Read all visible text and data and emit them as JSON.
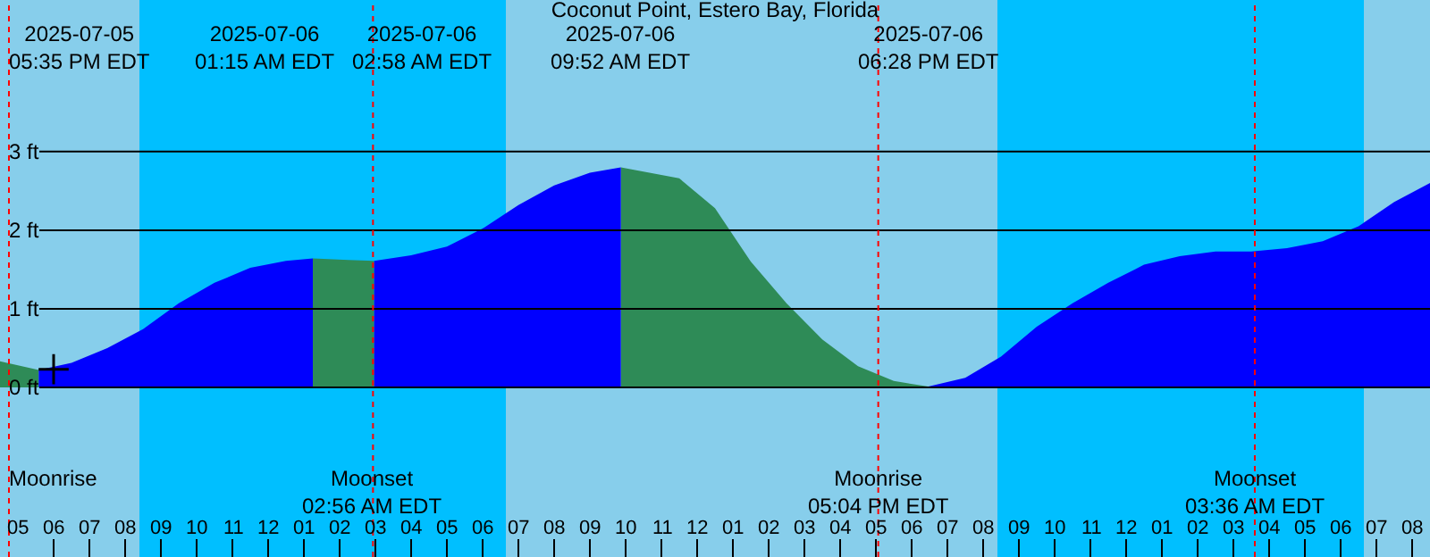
{
  "chart_data": {
    "type": "area",
    "title": "Coconut Point, Estero Bay, Florida",
    "xlim": [
      "2025-07-05T16:30",
      "2025-07-07T08:30"
    ],
    "ylim": [
      -2.16,
      4.93
    ],
    "yticks": [
      {
        "value": 0,
        "label": "0 ft"
      },
      {
        "value": 1,
        "label": "1 ft"
      },
      {
        "value": 2,
        "label": "2 ft"
      },
      {
        "value": 3,
        "label": "3 ft"
      }
    ],
    "xticks": [
      {
        "value": "2025-07-05T17:00",
        "label": "05"
      },
      {
        "value": "2025-07-05T18:00",
        "label": "06"
      },
      {
        "value": "2025-07-05T19:00",
        "label": "07"
      },
      {
        "value": "2025-07-05T20:00",
        "label": "08"
      },
      {
        "value": "2025-07-05T21:00",
        "label": "09"
      },
      {
        "value": "2025-07-05T22:00",
        "label": "10"
      },
      {
        "value": "2025-07-05T23:00",
        "label": "11"
      },
      {
        "value": "2025-07-06T00:00",
        "label": "12"
      },
      {
        "value": "2025-07-06T01:00",
        "label": "01"
      },
      {
        "value": "2025-07-06T02:00",
        "label": "02"
      },
      {
        "value": "2025-07-06T03:00",
        "label": "03"
      },
      {
        "value": "2025-07-06T04:00",
        "label": "04"
      },
      {
        "value": "2025-07-06T05:00",
        "label": "05"
      },
      {
        "value": "2025-07-06T06:00",
        "label": "06"
      },
      {
        "value": "2025-07-06T07:00",
        "label": "07"
      },
      {
        "value": "2025-07-06T08:00",
        "label": "08"
      },
      {
        "value": "2025-07-06T09:00",
        "label": "09"
      },
      {
        "value": "2025-07-06T10:00",
        "label": "10"
      },
      {
        "value": "2025-07-06T11:00",
        "label": "11"
      },
      {
        "value": "2025-07-06T12:00",
        "label": "12"
      },
      {
        "value": "2025-07-06T13:00",
        "label": "01"
      },
      {
        "value": "2025-07-06T14:00",
        "label": "02"
      },
      {
        "value": "2025-07-06T15:00",
        "label": "03"
      },
      {
        "value": "2025-07-06T16:00",
        "label": "04"
      },
      {
        "value": "2025-07-06T17:00",
        "label": "05"
      },
      {
        "value": "2025-07-06T18:00",
        "label": "06"
      },
      {
        "value": "2025-07-06T19:00",
        "label": "07"
      },
      {
        "value": "2025-07-06T20:00",
        "label": "08"
      },
      {
        "value": "2025-07-06T21:00",
        "label": "09"
      },
      {
        "value": "2025-07-06T22:00",
        "label": "10"
      },
      {
        "value": "2025-07-06T23:00",
        "label": "11"
      },
      {
        "value": "2025-07-07T00:00",
        "label": "12"
      },
      {
        "value": "2025-07-07T01:00",
        "label": "01"
      },
      {
        "value": "2025-07-07T02:00",
        "label": "02"
      },
      {
        "value": "2025-07-07T03:00",
        "label": "03"
      },
      {
        "value": "2025-07-07T04:00",
        "label": "04"
      },
      {
        "value": "2025-07-07T05:00",
        "label": "05"
      },
      {
        "value": "2025-07-07T06:00",
        "label": "06"
      },
      {
        "value": "2025-07-07T07:00",
        "label": "07"
      },
      {
        "value": "2025-07-07T08:00",
        "label": "08"
      }
    ],
    "grid": "y",
    "series": [
      {
        "color": "#2e8b57",
        "x": [
          "2025-07-05T16:30",
          "2025-07-05T17:35",
          null,
          "2025-07-06T01:15",
          "2025-07-06T02:15",
          "2025-07-06T02:58",
          null,
          "2025-07-06T09:52",
          "2025-07-06T11:30",
          "2025-07-06T12:30",
          "2025-07-06T13:30",
          "2025-07-06T14:30",
          "2025-07-06T15:30",
          "2025-07-06T16:30",
          "2025-07-06T17:30",
          "2025-07-06T18:28"
        ],
        "values": [
          0.33,
          0.22,
          null,
          1.64,
          1.62,
          1.61,
          null,
          2.8,
          2.66,
          2.28,
          1.6,
          1.07,
          0.61,
          0.27,
          0.08,
          0.01
        ]
      },
      {
        "color": "#0000ff",
        "x": [
          "2025-07-05T17:35",
          "2025-07-05T18:30",
          "2025-07-05T19:30",
          "2025-07-05T20:30",
          "2025-07-05T21:30",
          "2025-07-05T22:30",
          "2025-07-05T23:30",
          "2025-07-06T00:30",
          "2025-07-06T01:15",
          null,
          "2025-07-06T02:58",
          "2025-07-06T04:00",
          "2025-07-06T05:00",
          "2025-07-06T06:00",
          "2025-07-06T07:00",
          "2025-07-06T08:00",
          "2025-07-06T09:00",
          "2025-07-06T09:52",
          null,
          "2025-07-06T18:28",
          "2025-07-06T19:30",
          "2025-07-06T20:30",
          "2025-07-06T21:30",
          "2025-07-06T22:30",
          "2025-07-06T23:30",
          "2025-07-07T00:30",
          "2025-07-07T01:30",
          "2025-07-07T02:30",
          "2025-07-07T03:30",
          "2025-07-07T04:30",
          "2025-07-07T05:30",
          "2025-07-07T06:30",
          "2025-07-07T07:30",
          "2025-07-07T08:30"
        ],
        "values": [
          0.22,
          0.31,
          0.5,
          0.74,
          1.07,
          1.33,
          1.52,
          1.61,
          1.64,
          null,
          1.61,
          1.68,
          1.79,
          2.02,
          2.32,
          2.57,
          2.73,
          2.8,
          null,
          0.01,
          0.12,
          0.39,
          0.77,
          1.07,
          1.33,
          1.56,
          1.67,
          1.73,
          1.73,
          1.77,
          1.86,
          2.05,
          2.36,
          2.6
        ]
      },
      {
        "type": "scatter",
        "color": "#000000",
        "marker": "cross",
        "x": [
          "2025-07-05T18:00"
        ],
        "values": [
          0.23
        ]
      }
    ],
    "bands": [
      {
        "axis": "x",
        "from": "2025-07-05T20:24",
        "to": "2025-07-06T06:39",
        "color": "#00bfff"
      },
      {
        "axis": "x",
        "from": "2025-07-06T20:24",
        "to": "2025-07-07T06:39",
        "color": "#00bfff"
      }
    ],
    "annotations": [
      "2025-07-05\n05:35 PM EDT",
      "2025-07-06\n01:15 AM EDT",
      "2025-07-06\n02:58 AM EDT",
      "2025-07-06\n09:52 AM EDT",
      "2025-07-06\n06:28 PM EDT"
    ],
    "ref_lines": [
      {
        "axis": "x",
        "value": "2025-07-05T16:45",
        "label": "Moonrise",
        "color": "#ff0000"
      },
      {
        "axis": "x",
        "value": "2025-07-06T02:56",
        "label": "Moonset\n02:56 AM EDT",
        "color": "#ff0000"
      },
      {
        "axis": "x",
        "value": "2025-07-06T17:04",
        "label": "Moonrise\n05:04 PM EDT",
        "color": "#ff0000"
      },
      {
        "axis": "x",
        "value": "2025-07-07T03:36",
        "label": "Moonset\n03:36 AM EDT",
        "color": "#ff0000"
      }
    ]
  }
}
